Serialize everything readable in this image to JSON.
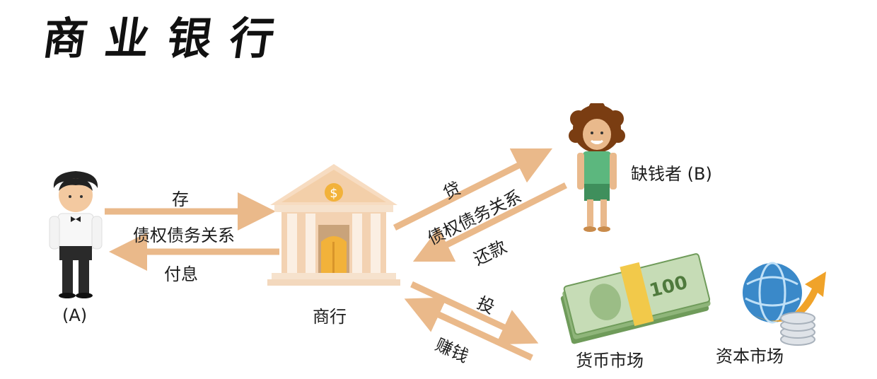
{
  "title": "商业银行",
  "depositor": {
    "label": "(A)"
  },
  "bank": {
    "label": "商行"
  },
  "borrower": {
    "label": "缺钱者 (B)"
  },
  "money_market": {
    "label": "货币市场"
  },
  "capital_market": {
    "label": "资本市场"
  },
  "left_flow": {
    "deposit": "存",
    "relation": "债权债务关系",
    "interest": "付息"
  },
  "right_flow": {
    "loan": "贷",
    "relation": "债权债务关系",
    "repay": "还款"
  },
  "market_flow": {
    "invest": "投",
    "earn": "赚钱"
  },
  "colors": {
    "arrow": "#eab98a",
    "bank_wall": "#f6dcc0",
    "door": "#f2b23a",
    "shirt": "#5cb77e"
  }
}
